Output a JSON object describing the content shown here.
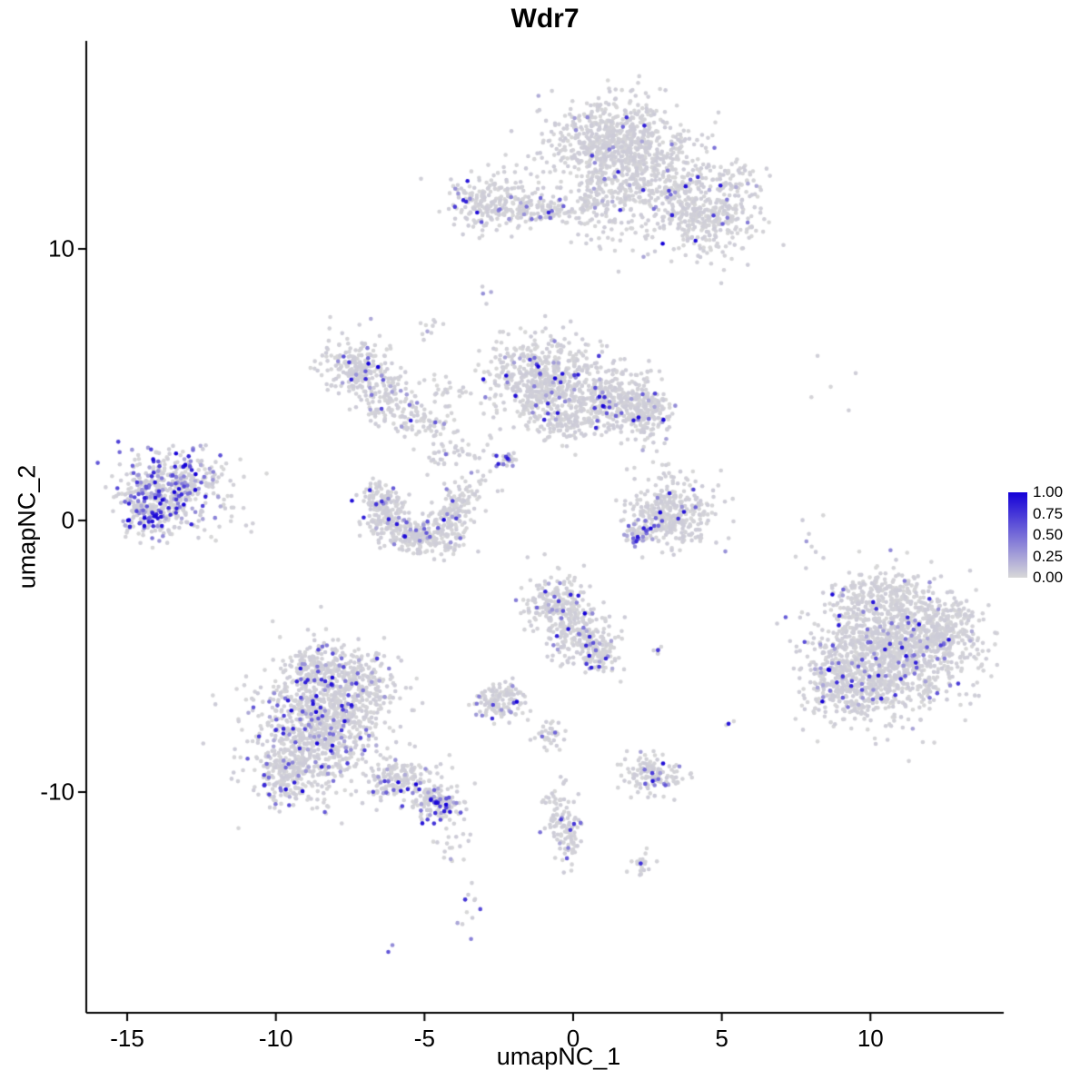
{
  "title": "Wdr7",
  "chart_data": {
    "type": "scatter",
    "title": "Wdr7",
    "xlabel": "umapNC_1",
    "ylabel": "umapNC_2",
    "x_ticks": [
      -15,
      -10,
      -5,
      0,
      5,
      10
    ],
    "y_ticks": [
      10,
      0,
      -10
    ],
    "xlim": [
      -16.4,
      14.5
    ],
    "ylim": [
      -18.1,
      17.7
    ],
    "grid": false,
    "legend": {
      "position": "right",
      "ticks": [
        "1.00",
        "0.75",
        "0.50",
        "0.25",
        "0.00"
      ],
      "low_color": "#D8D8D8",
      "high_color": "#1400D8"
    },
    "point_radius": 2.3,
    "clusters": [
      {
        "name": "top-main",
        "cx": 1.4,
        "cy": 13.9,
        "sx": 1.15,
        "sy": 0.85,
        "n": 700,
        "expr": 0.02
      },
      {
        "name": "top-right-mid",
        "cx": 2.9,
        "cy": 12.2,
        "sx": 1.0,
        "sy": 0.8,
        "n": 350,
        "expr": 0.03
      },
      {
        "name": "top-right-arm",
        "cx": 4.6,
        "cy": 11.1,
        "sx": 0.85,
        "sy": 0.7,
        "n": 260,
        "expr": 0.04
      },
      {
        "name": "top-neck",
        "cx": 0.8,
        "cy": 11.9,
        "sx": 0.45,
        "sy": 0.9,
        "n": 140,
        "expr": 0.02
      },
      {
        "name": "top-right-tip",
        "cx": 5.5,
        "cy": 12.4,
        "sx": 0.5,
        "sy": 0.45,
        "n": 60,
        "expr": 0.05
      },
      {
        "name": "top-left-island",
        "cx": -2.5,
        "cy": 11.7,
        "sx": 0.85,
        "sy": 0.5,
        "n": 260,
        "expr": 0.06
      },
      {
        "name": "top-left-arm",
        "cx": -0.9,
        "cy": 11.4,
        "sx": 0.6,
        "sy": 0.3,
        "n": 70,
        "expr": 0.04
      },
      {
        "name": "lone-pair-upper",
        "cx": -2.9,
        "cy": 8.7,
        "sx": 0.15,
        "sy": 0.2,
        "n": 4,
        "expr": 0.3
      },
      {
        "name": "small-upper-mid",
        "cx": -4.8,
        "cy": 7.1,
        "sx": 0.25,
        "sy": 0.3,
        "n": 10,
        "expr": 0.05
      },
      {
        "name": "left-mid-main",
        "cx": -7.2,
        "cy": 5.6,
        "sx": 0.6,
        "sy": 0.6,
        "n": 230,
        "expr": 0.06
      },
      {
        "name": "left-mid-lower",
        "cx": -6.2,
        "cy": 4.4,
        "sx": 0.45,
        "sy": 0.5,
        "n": 100,
        "expr": 0.05
      },
      {
        "name": "left-mid-bridge",
        "cx": -5.2,
        "cy": 3.7,
        "sx": 0.5,
        "sy": 0.35,
        "n": 60,
        "expr": 0.05
      },
      {
        "name": "scatter-mid-left",
        "cx": -4.2,
        "cy": 2.5,
        "sx": 0.6,
        "sy": 0.4,
        "n": 45,
        "expr": 0.08
      },
      {
        "name": "scatter-mid-left2",
        "cx": -4.3,
        "cy": 4.7,
        "sx": 0.35,
        "sy": 0.3,
        "n": 20,
        "expr": 0.05
      },
      {
        "name": "central-main",
        "cx": -1.0,
        "cy": 5.2,
        "sx": 0.95,
        "sy": 0.8,
        "n": 560,
        "expr": 0.06
      },
      {
        "name": "central-right",
        "cx": 1.2,
        "cy": 4.4,
        "sx": 0.8,
        "sy": 0.6,
        "n": 350,
        "expr": 0.06
      },
      {
        "name": "central-arm",
        "cx": 2.4,
        "cy": 3.9,
        "sx": 0.5,
        "sy": 0.5,
        "n": 150,
        "expr": 0.07
      },
      {
        "name": "central-lower",
        "cx": -0.3,
        "cy": 3.5,
        "sx": 0.45,
        "sy": 0.35,
        "n": 90,
        "expr": 0.04
      },
      {
        "name": "central-dense-dot",
        "cx": -2.3,
        "cy": 2.3,
        "sx": 0.18,
        "sy": 0.18,
        "n": 25,
        "expr": 0.5
      },
      {
        "name": "far-left-main",
        "cx": -13.5,
        "cy": 1.2,
        "sx": 0.85,
        "sy": 0.7,
        "n": 430,
        "expr": 0.32
      },
      {
        "name": "far-left-lower",
        "cx": -14.3,
        "cy": 0.3,
        "sx": 0.45,
        "sy": 0.5,
        "n": 130,
        "expr": 0.4
      },
      {
        "name": "far-left-outliers",
        "cx": -11.9,
        "cy": 1.2,
        "sx": 0.8,
        "sy": 1.0,
        "n": 30,
        "expr": 0.12
      },
      {
        "name": "crescent-left",
        "cx": -6.3,
        "cy": 0.2,
        "sx": 0.4,
        "sy": 0.5,
        "n": 140,
        "expr": 0.07
      },
      {
        "name": "crescent-bottom",
        "cx": -5.3,
        "cy": -0.6,
        "sx": 0.55,
        "sy": 0.3,
        "n": 160,
        "expr": 0.08
      },
      {
        "name": "crescent-right",
        "cx": -4.2,
        "cy": -0.1,
        "sx": 0.4,
        "sy": 0.5,
        "n": 140,
        "expr": 0.07
      },
      {
        "name": "crescent-tip-left",
        "cx": -6.6,
        "cy": 0.9,
        "sx": 0.25,
        "sy": 0.3,
        "n": 50,
        "expr": 0.05
      },
      {
        "name": "crescent-tip-right",
        "cx": -3.9,
        "cy": 0.8,
        "sx": 0.3,
        "sy": 0.3,
        "n": 50,
        "expr": 0.05
      },
      {
        "name": "mid-strays",
        "cx": -3.1,
        "cy": 1.3,
        "sx": 0.3,
        "sy": 0.3,
        "n": 12,
        "expr": 0.05
      },
      {
        "name": "right-mid-main",
        "cx": 3.3,
        "cy": 0.2,
        "sx": 0.7,
        "sy": 0.6,
        "n": 340,
        "expr": 0.04
      },
      {
        "name": "right-mid-dark",
        "cx": 2.2,
        "cy": -0.5,
        "sx": 0.3,
        "sy": 0.3,
        "n": 45,
        "expr": 0.45
      },
      {
        "name": "right-mid-top",
        "cx": 3.1,
        "cy": 1.7,
        "sx": 0.3,
        "sy": 0.3,
        "n": 15,
        "expr": 0.05
      },
      {
        "name": "x8-column",
        "cx": 7.9,
        "cy": -0.5,
        "sx": 0.3,
        "sy": 0.7,
        "n": 9,
        "expr": 0.1
      },
      {
        "name": "right-singles",
        "cx": 8.9,
        "cy": 5.4,
        "sx": 0.6,
        "sy": 1.0,
        "n": 5,
        "expr": 0.1
      },
      {
        "name": "mid-bottom-upper",
        "cx": -0.6,
        "cy": -3.1,
        "sx": 0.5,
        "sy": 0.5,
        "n": 200,
        "expr": 0.12
      },
      {
        "name": "mid-bottom-mid",
        "cx": 0.3,
        "cy": -4.2,
        "sx": 0.55,
        "sy": 0.5,
        "n": 190,
        "expr": 0.07
      },
      {
        "name": "mid-bottom-tip",
        "cx": 0.9,
        "cy": -5.0,
        "sx": 0.4,
        "sy": 0.4,
        "n": 80,
        "expr": 0.06
      },
      {
        "name": "lone-mid",
        "cx": 2.9,
        "cy": -4.9,
        "sx": 0.2,
        "sy": 0.2,
        "n": 6,
        "expr": 0.25
      },
      {
        "name": "right-big-main",
        "cx": 10.8,
        "cy": -4.8,
        "sx": 1.25,
        "sy": 1.15,
        "n": 1150,
        "expr": 0.05
      },
      {
        "name": "right-big-left",
        "cx": 9.2,
        "cy": -5.9,
        "sx": 0.7,
        "sy": 0.8,
        "n": 300,
        "expr": 0.1
      },
      {
        "name": "right-big-right",
        "cx": 12.3,
        "cy": -4.1,
        "sx": 0.65,
        "sy": 0.7,
        "n": 240,
        "expr": 0.05
      },
      {
        "name": "right-big-top",
        "cx": 10.3,
        "cy": -2.7,
        "sx": 0.8,
        "sy": 0.45,
        "n": 150,
        "expr": 0.04
      },
      {
        "name": "lone-below-right",
        "cx": 5.3,
        "cy": -7.5,
        "sx": 0.2,
        "sy": 0.2,
        "n": 3,
        "expr": 0.4
      },
      {
        "name": "bottom-left-main",
        "cx": -8.6,
        "cy": -7.6,
        "sx": 1.05,
        "sy": 1.15,
        "n": 850,
        "expr": 0.12
      },
      {
        "name": "bottom-left-lower",
        "cx": -9.6,
        "cy": -9.3,
        "sx": 0.6,
        "sy": 0.55,
        "n": 200,
        "expr": 0.1
      },
      {
        "name": "bottom-left-upper-right",
        "cx": -7.3,
        "cy": -6.1,
        "sx": 0.7,
        "sy": 0.65,
        "n": 250,
        "expr": 0.1
      },
      {
        "name": "bottom-left-top",
        "cx": -8.7,
        "cy": -5.3,
        "sx": 0.6,
        "sy": 0.4,
        "n": 120,
        "expr": 0.1
      },
      {
        "name": "bottom-tail-1",
        "cx": -5.9,
        "cy": -9.6,
        "sx": 0.6,
        "sy": 0.4,
        "n": 150,
        "expr": 0.15
      },
      {
        "name": "bottom-tail-2",
        "cx": -4.5,
        "cy": -10.4,
        "sx": 0.5,
        "sy": 0.35,
        "n": 150,
        "expr": 0.28
      },
      {
        "name": "tail-below-1",
        "cx": -4.1,
        "cy": -11.8,
        "sx": 0.3,
        "sy": 0.5,
        "n": 18,
        "expr": 0.15
      },
      {
        "name": "tail-below-2",
        "cx": -3.5,
        "cy": -13.8,
        "sx": 0.25,
        "sy": 0.5,
        "n": 12,
        "expr": 0.3
      },
      {
        "name": "lone-bottom",
        "cx": -6.1,
        "cy": -15.8,
        "sx": 0.15,
        "sy": 0.15,
        "n": 2,
        "expr": 0.6
      },
      {
        "name": "small-mid-bottom",
        "cx": -2.5,
        "cy": -6.6,
        "sx": 0.45,
        "sy": 0.35,
        "n": 120,
        "expr": 0.12
      },
      {
        "name": "small-mid-bottom2",
        "cx": -0.8,
        "cy": -7.9,
        "sx": 0.3,
        "sy": 0.3,
        "n": 35,
        "expr": 0.05
      },
      {
        "name": "bottom-mid-island",
        "cx": 2.6,
        "cy": -9.3,
        "sx": 0.5,
        "sy": 0.35,
        "n": 130,
        "expr": 0.1
      },
      {
        "name": "strip-upper",
        "cx": -0.4,
        "cy": -10.8,
        "sx": 0.3,
        "sy": 0.45,
        "n": 70,
        "expr": 0.08
      },
      {
        "name": "strip-lower",
        "cx": -0.2,
        "cy": -11.9,
        "sx": 0.25,
        "sy": 0.45,
        "n": 50,
        "expr": 0.06
      },
      {
        "name": "tiny-bottom-right",
        "cx": 2.3,
        "cy": -12.7,
        "sx": 0.2,
        "sy": 0.25,
        "n": 22,
        "expr": 0.1
      }
    ]
  }
}
